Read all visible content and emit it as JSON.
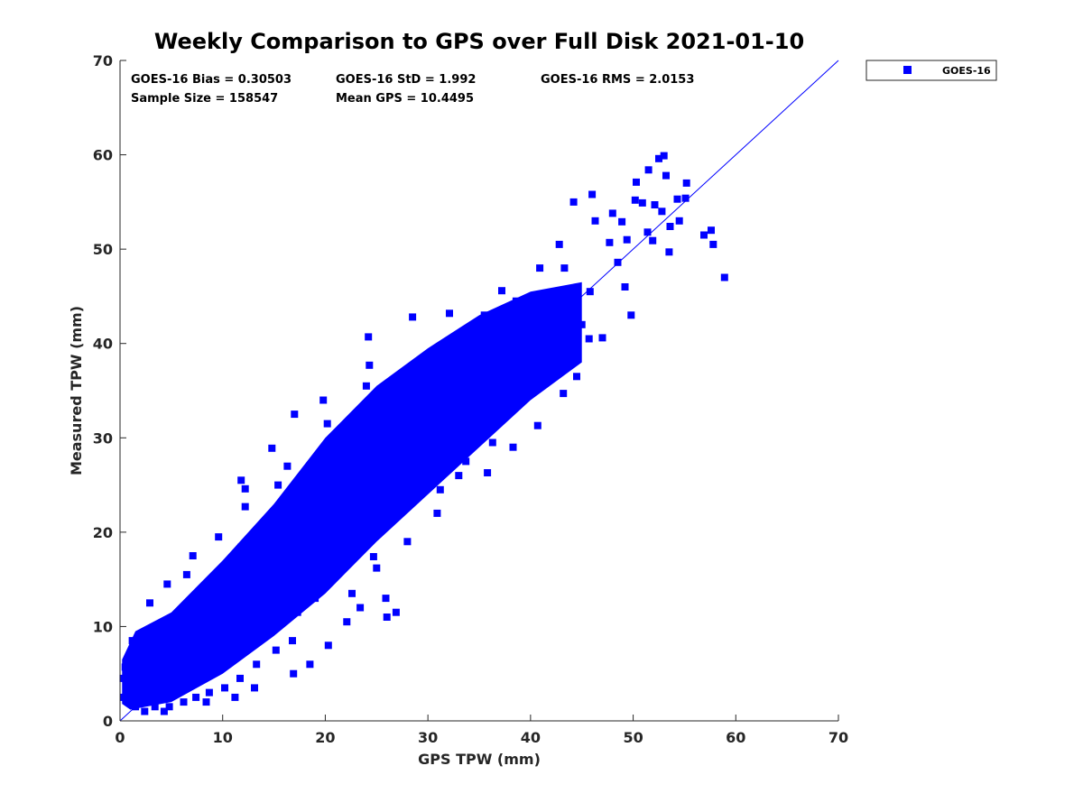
{
  "chart_data": {
    "type": "scatter",
    "title": "Weekly Comparison to GPS over Full Disk 2021-01-10",
    "xlabel": "GPS TPW (mm)",
    "ylabel": "Measured TPW (mm)",
    "xlim": [
      0,
      70
    ],
    "ylim": [
      0,
      70
    ],
    "xticks": [
      "0",
      "10",
      "20",
      "30",
      "40",
      "50",
      "60",
      "70"
    ],
    "yticks": [
      "0",
      "10",
      "20",
      "30",
      "40",
      "50",
      "60",
      "70"
    ],
    "grid": false,
    "legend_position": "outside-top-right",
    "reference_line": {
      "x": [
        0,
        70
      ],
      "y": [
        0,
        70
      ],
      "color": "#0000ff"
    },
    "series": [
      {
        "name": "GOES-16",
        "color": "#0000ff",
        "marker": "square",
        "points": [
          [
            58.9,
            47.0
          ],
          [
            57.8,
            50.5
          ],
          [
            57.6,
            52.0
          ],
          [
            56.9,
            51.5
          ],
          [
            55.2,
            57.0
          ],
          [
            53.0,
            59.9
          ],
          [
            52.5,
            59.6
          ],
          [
            51.5,
            58.4
          ],
          [
            50.3,
            57.1
          ],
          [
            54.3,
            55.3
          ],
          [
            46.0,
            55.8
          ],
          [
            44.2,
            55.0
          ],
          [
            43.3,
            48.0
          ],
          [
            49.8,
            43.0
          ],
          [
            49.2,
            46.0
          ],
          [
            45.7,
            40.5
          ],
          [
            40.7,
            31.3
          ],
          [
            39.2,
            34.5
          ],
          [
            38.3,
            29.0
          ],
          [
            36.3,
            29.5
          ],
          [
            34.6,
            31.0
          ],
          [
            33.0,
            26.0
          ],
          [
            30.9,
            22.0
          ],
          [
            28.9,
            24.5
          ],
          [
            26.8,
            23.5
          ],
          [
            24.8,
            21.0
          ],
          [
            22.9,
            20.0
          ],
          [
            21.0,
            17.0
          ],
          [
            19.0,
            13.0
          ],
          [
            17.3,
            11.5
          ],
          [
            16.8,
            8.5
          ],
          [
            15.2,
            7.5
          ],
          [
            13.3,
            6.0
          ],
          [
            11.7,
            4.5
          ],
          [
            10.2,
            3.5
          ],
          [
            8.7,
            3.0
          ],
          [
            7.4,
            2.5
          ],
          [
            6.2,
            2.0
          ],
          [
            4.8,
            1.5
          ],
          [
            3.4,
            1.5
          ],
          [
            2.4,
            1.0
          ],
          [
            1.5,
            1.5
          ],
          [
            0.4,
            2.5
          ],
          [
            0.3,
            4.5
          ],
          [
            0.5,
            5.7
          ],
          [
            1.2,
            8.5
          ],
          [
            2.9,
            12.5
          ],
          [
            4.6,
            14.5
          ],
          [
            7.1,
            17.5
          ],
          [
            9.6,
            19.5
          ],
          [
            12.2,
            24.6
          ],
          [
            14.8,
            28.9
          ],
          [
            17.0,
            32.5
          ],
          [
            19.8,
            34.0
          ],
          [
            24.3,
            37.7
          ],
          [
            24.2,
            40.7
          ],
          [
            28.5,
            42.8
          ],
          [
            32.1,
            43.2
          ],
          [
            37.2,
            45.6
          ],
          [
            40.9,
            48.0
          ],
          [
            42.8,
            50.5
          ],
          [
            46.3,
            53.0
          ],
          [
            48.0,
            53.8
          ],
          [
            50.2,
            55.2
          ],
          [
            6.5,
            15.5
          ],
          [
            12.2,
            22.7
          ],
          [
            11.8,
            18.4
          ],
          [
            11.8,
            25.5
          ],
          [
            15.4,
            25.0
          ],
          [
            16.3,
            27.0
          ],
          [
            20.2,
            31.5
          ],
          [
            24.0,
            35.5
          ],
          [
            24.3,
            30.0
          ],
          [
            30.8,
            38.2
          ],
          [
            27.3,
            36.6
          ],
          [
            35.5,
            43.0
          ],
          [
            33.0,
            35.9
          ],
          [
            38.6,
            44.5
          ],
          [
            43.9,
            37.9
          ],
          [
            44.5,
            36.5
          ],
          [
            47.0,
            40.6
          ],
          [
            24.7,
            17.4
          ],
          [
            25.0,
            16.2
          ],
          [
            25.9,
            13.0
          ],
          [
            26.9,
            11.5
          ],
          [
            26.0,
            11.0
          ],
          [
            23.4,
            12.0
          ],
          [
            22.1,
            10.5
          ],
          [
            20.3,
            8.0
          ],
          [
            18.5,
            6.0
          ],
          [
            16.9,
            5.0
          ],
          [
            22.6,
            13.5
          ],
          [
            28.0,
            19.0
          ],
          [
            31.2,
            24.5
          ],
          [
            33.7,
            27.5
          ],
          [
            35.8,
            26.3
          ],
          [
            43.2,
            34.7
          ],
          [
            13.1,
            3.5
          ],
          [
            11.2,
            2.5
          ],
          [
            8.4,
            2.0
          ],
          [
            4.3,
            1.0
          ],
          [
            5.5,
            9.8
          ],
          [
            9.8,
            15.0
          ],
          [
            14.6,
            18.6
          ],
          [
            19.3,
            22.6
          ],
          [
            21.7,
            24.1
          ],
          [
            27.1,
            27.1
          ],
          [
            29.6,
            29.8
          ],
          [
            33.2,
            33.4
          ],
          [
            36.9,
            36.8
          ],
          [
            39.7,
            40.0
          ],
          [
            43.1,
            42.7
          ],
          [
            45.8,
            45.5
          ],
          [
            48.5,
            48.6
          ],
          [
            51.4,
            51.8
          ],
          [
            49.4,
            51.0
          ],
          [
            52.1,
            54.7
          ],
          [
            53.6,
            52.4
          ],
          [
            47.7,
            50.7
          ],
          [
            53.2,
            57.8
          ],
          [
            55.1,
            55.4
          ],
          [
            52.8,
            54.0
          ],
          [
            48.9,
            52.9
          ],
          [
            50.9,
            54.9
          ],
          [
            54.5,
            53.0
          ],
          [
            51.9,
            50.9
          ],
          [
            53.5,
            49.7
          ],
          [
            12.0,
            11.1
          ],
          [
            16.8,
            16.2
          ],
          [
            7.7,
            8.1
          ],
          [
            23.4,
            23.0
          ],
          [
            25.6,
            26.0
          ],
          [
            31.0,
            30.2
          ],
          [
            34.3,
            34.8
          ],
          [
            38.1,
            38.4
          ],
          [
            41.8,
            41.5
          ],
          [
            45.0,
            42.0
          ],
          [
            2.1,
            3.1
          ],
          [
            3.8,
            4.9
          ],
          [
            6.0,
            6.3
          ],
          [
            10.8,
            9.5
          ],
          [
            18.3,
            18.5
          ],
          [
            20.9,
            21.4
          ]
        ]
      }
    ],
    "stats": {
      "bias": "GOES-16 Bias = 0.30503",
      "std": "GOES-16 StD = 1.992",
      "rms": "GOES-16 RMS = 2.0153",
      "sample_size": "Sample Size = 158547",
      "mean_gps": "Mean GPS = 10.4495"
    }
  }
}
